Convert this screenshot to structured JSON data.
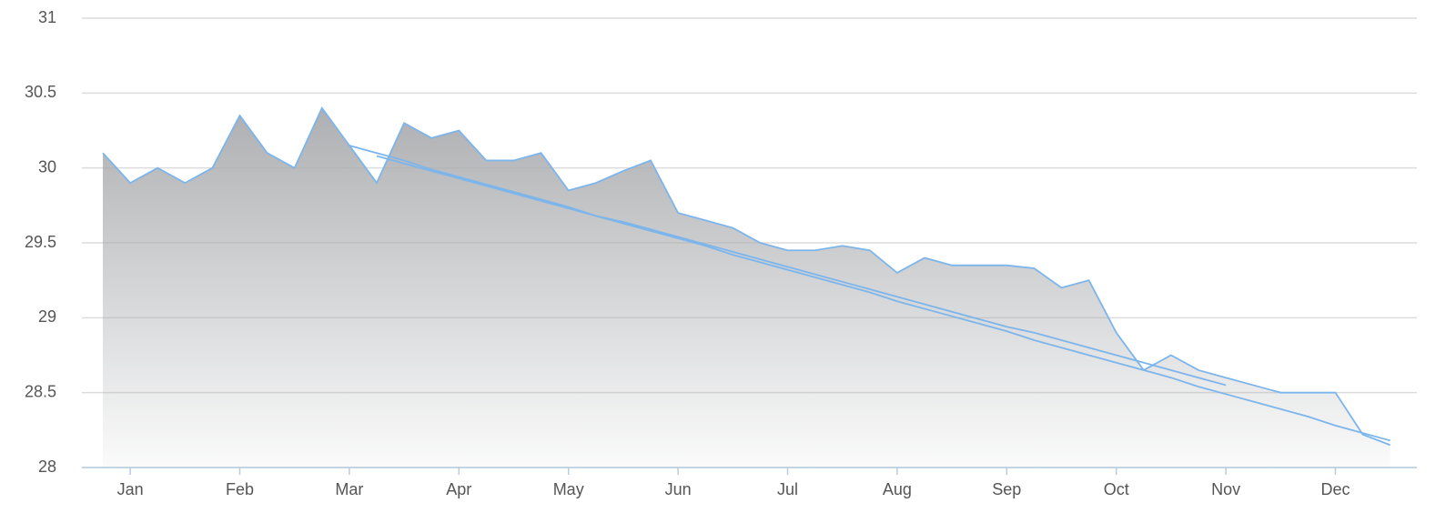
{
  "chart_data": {
    "type": "area",
    "categories": [
      null,
      "Jan",
      null,
      null,
      null,
      "Feb",
      null,
      null,
      null,
      "Mar",
      null,
      null,
      null,
      "Apr",
      null,
      null,
      null,
      "May",
      null,
      null,
      null,
      "Jun",
      null,
      null,
      null,
      "Jul",
      null,
      null,
      null,
      "Aug",
      null,
      null,
      null,
      "Sep",
      null,
      null,
      null,
      "Oct",
      null,
      null,
      null,
      "Nov",
      null,
      null,
      null,
      "Dec",
      null,
      null
    ],
    "series": [
      {
        "type": "area",
        "color": "#7cb5ec",
        "values": [
          30.1,
          29.9,
          30.0,
          29.9,
          30.0,
          30.35,
          30.1,
          30.0,
          30.4,
          30.15,
          29.9,
          30.3,
          30.2,
          30.25,
          30.05,
          30.05,
          30.1,
          29.85,
          29.9,
          29.98,
          30.05,
          29.7,
          29.65,
          29.6,
          29.5,
          29.45,
          29.45,
          29.48,
          29.45,
          29.3,
          29.4,
          29.35,
          29.35,
          29.35,
          29.33,
          29.2,
          29.25,
          28.9,
          28.65,
          28.75,
          28.65,
          28.6,
          28.55,
          28.5,
          28.5,
          28.5,
          28.22,
          28.15
        ]
      },
      {
        "type": "line",
        "color": "#7cb5ec",
        "values": [
          null,
          null,
          null,
          null,
          null,
          null,
          null,
          null,
          null,
          30.15,
          30.1,
          30.05,
          29.99,
          29.94,
          29.89,
          29.84,
          29.79,
          29.74,
          29.68,
          29.63,
          29.58,
          29.53,
          29.48,
          29.42,
          29.37,
          29.32,
          29.27,
          29.22,
          29.17,
          29.11,
          29.06,
          29.01,
          28.96,
          28.91,
          28.85,
          28.8,
          28.75,
          28.7,
          28.65,
          28.6,
          28.54,
          28.49,
          28.44,
          28.39,
          28.34,
          28.28,
          28.23,
          28.18
        ]
      },
      {
        "type": "line",
        "color": "#7cb5ec",
        "values": [
          null,
          null,
          null,
          null,
          null,
          null,
          null,
          null,
          null,
          null,
          30.08,
          30.03,
          29.98,
          29.93,
          29.88,
          29.83,
          29.78,
          29.73,
          29.68,
          29.64,
          29.59,
          29.54,
          29.49,
          29.44,
          29.39,
          29.34,
          29.29,
          29.24,
          29.19,
          29.14,
          29.09,
          29.04,
          28.99,
          28.94,
          28.9,
          28.85,
          28.8,
          28.75,
          28.7,
          28.65,
          28.6,
          28.55,
          null,
          null,
          null,
          null,
          null,
          null
        ]
      }
    ],
    "ylim": [
      28,
      31
    ],
    "yticks": [
      28,
      28.5,
      29,
      29.5,
      30,
      30.5,
      31
    ],
    "grid": true
  }
}
